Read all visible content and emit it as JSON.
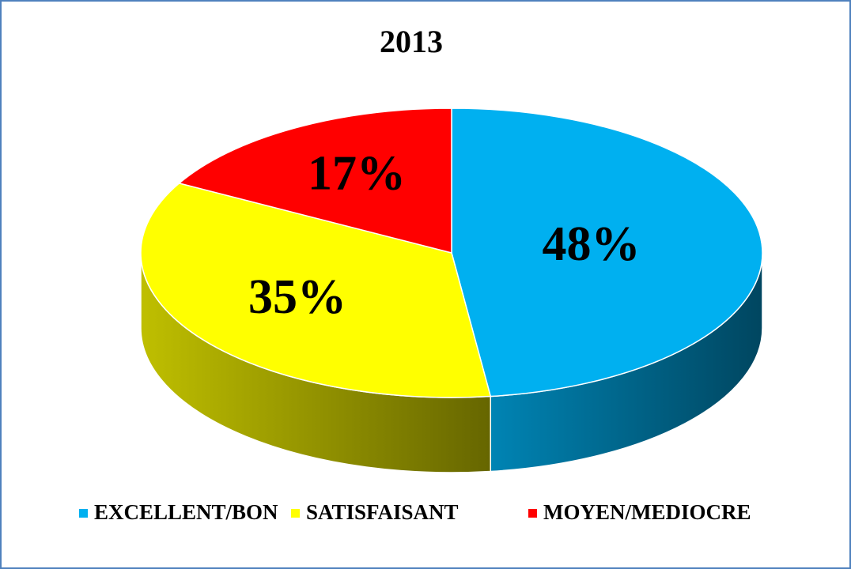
{
  "chart_data": {
    "type": "pie3d",
    "title": "2013",
    "categories": [
      "EXCELLENT/BON",
      "SATISFAISANT",
      "MOYEN/MEDIOCRE"
    ],
    "values": [
      48,
      35,
      17
    ],
    "value_labels": [
      "48%",
      "35%",
      "17%"
    ],
    "colors": [
      "#00b0f0",
      "#ffff00",
      "#ff0000"
    ],
    "legend": "bottom"
  }
}
